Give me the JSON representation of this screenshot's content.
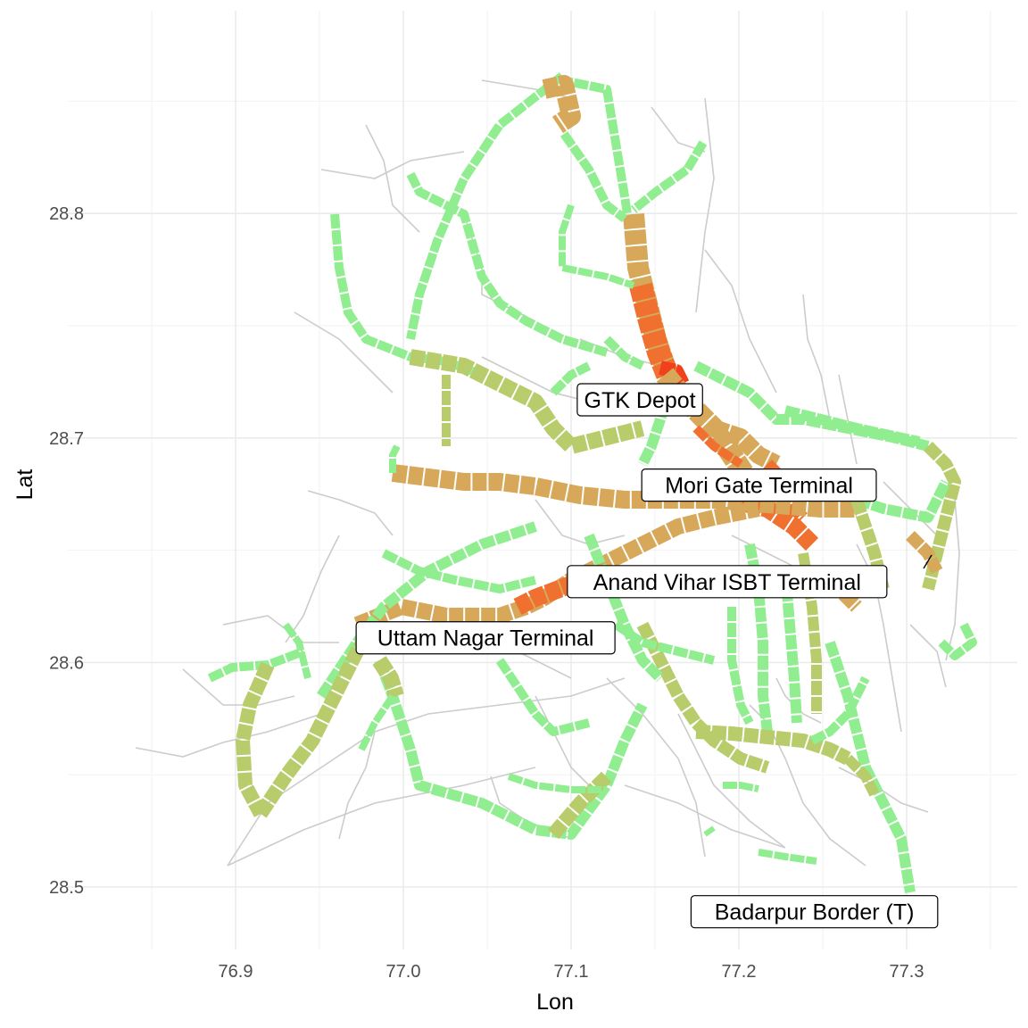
{
  "chart_data": {
    "type": "map",
    "xlabel": "Lon",
    "ylabel": "Lat",
    "x_ticks": [
      "76.9",
      "77.0",
      "77.1",
      "77.2",
      "77.3"
    ],
    "y_ticks": [
      "28.5",
      "28.6",
      "28.7",
      "28.8"
    ],
    "xlim": [
      76.83,
      77.35
    ],
    "ylim": [
      28.47,
      28.88
    ],
    "grid": true,
    "colors": {
      "base_network": "#cccccc",
      "low_load": "#90ee90",
      "mid_load": "#b8cc6c",
      "high_load": "#d7a85a",
      "very_high_load": "#f07030",
      "peak_load": "#f0401c"
    },
    "labels": [
      {
        "text": "GTK Depot",
        "lon": 77.141,
        "lat": 28.717
      },
      {
        "text": "Mori Gate Terminal",
        "lon": 77.212,
        "lat": 28.679
      },
      {
        "text": "Anand Vihar ISBT Terminal",
        "lon": 77.193,
        "lat": 28.636
      },
      {
        "text": "Uttam Nagar Terminal",
        "lon": 77.049,
        "lat": 28.611
      },
      {
        "text": "Badarpur Border (T)",
        "lon": 77.245,
        "lat": 28.489
      }
    ]
  }
}
